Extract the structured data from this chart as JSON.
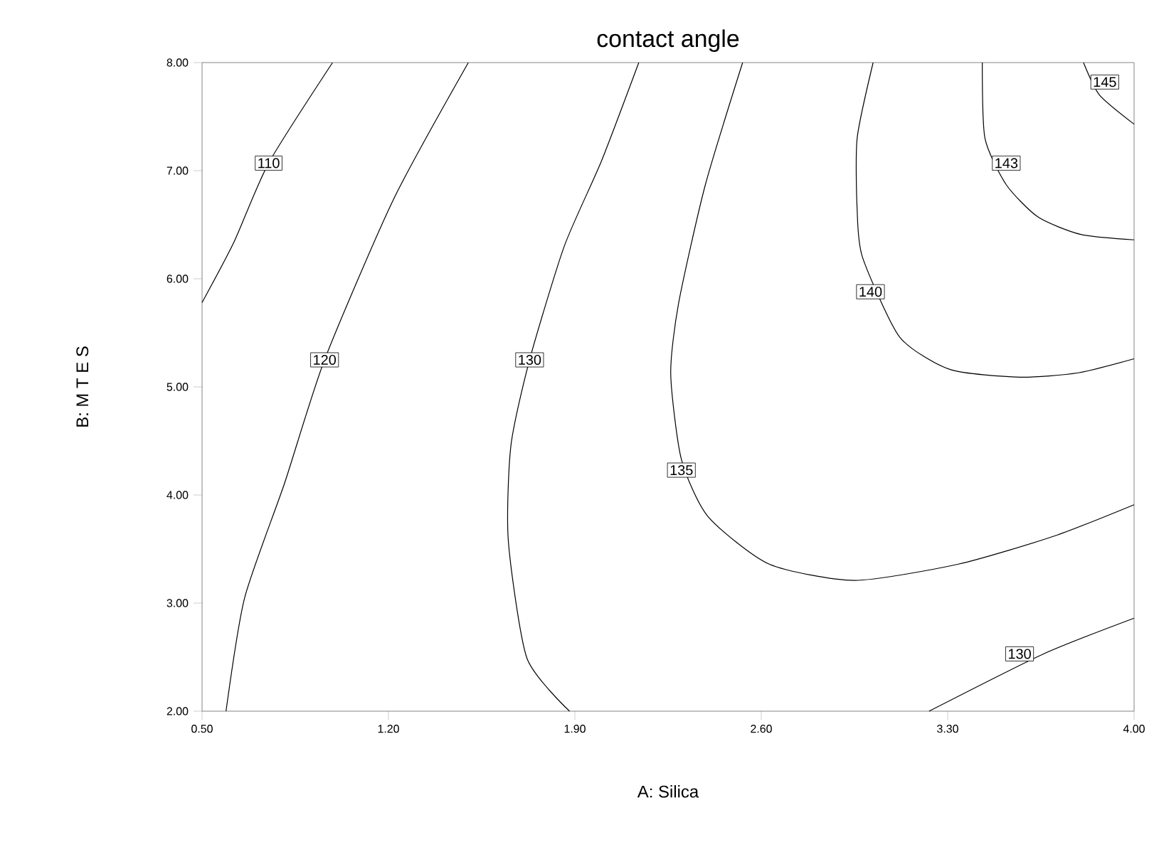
{
  "chart_data": {
    "type": "line",
    "title": "contact angle",
    "xlabel": "A: Silica",
    "ylabel": "B: M T E S",
    "xlim": [
      0.5,
      4.0
    ],
    "ylim": [
      2.0,
      8.0
    ],
    "xticks": [
      {
        "value": 0.5,
        "label": "0.50"
      },
      {
        "value": 1.2,
        "label": "1.20"
      },
      {
        "value": 1.9,
        "label": "1.90"
      },
      {
        "value": 2.6,
        "label": "2.60"
      },
      {
        "value": 3.3,
        "label": "3.30"
      },
      {
        "value": 4.0,
        "label": "4.00"
      }
    ],
    "yticks": [
      {
        "value": 2,
        "label": "2.00"
      },
      {
        "value": 3,
        "label": "3.00"
      },
      {
        "value": 4,
        "label": "4.00"
      },
      {
        "value": 5,
        "label": "5.00"
      },
      {
        "value": 6,
        "label": "6.00"
      },
      {
        "value": 7,
        "label": "7.00"
      },
      {
        "value": 8,
        "label": "8.00"
      }
    ],
    "grid": false,
    "marker": "none",
    "line_style": "solid",
    "series": [
      {
        "color": "#000000",
        "x": [
          0.5,
          0.62,
          0.75,
          0.99
        ],
        "values": [
          5.78,
          6.34,
          7.07,
          8.0
        ]
      },
      {
        "color": "#000000",
        "x": [
          0.59,
          0.66,
          0.81,
          0.96,
          1.22,
          1.5
        ],
        "values": [
          2.0,
          3.05,
          4.11,
          5.25,
          6.74,
          8.0
        ]
      },
      {
        "color": "#000000",
        "x": [
          1.88,
          1.72,
          1.65,
          1.66,
          1.73,
          1.86,
          2.0,
          2.14
        ],
        "values": [
          2.0,
          2.49,
          3.58,
          4.46,
          5.25,
          6.3,
          7.09,
          8.0
        ]
      },
      {
        "color": "#000000",
        "x": [
          2.53,
          2.39,
          2.29,
          2.26,
          2.3,
          2.4,
          2.63,
          2.95,
          3.34,
          3.7,
          4.0
        ],
        "values": [
          8.0,
          6.87,
          5.78,
          5.12,
          4.33,
          3.8,
          3.36,
          3.21,
          3.36,
          3.62,
          3.91
        ]
      },
      {
        "color": "#000000",
        "x": [
          3.02,
          2.96,
          2.96,
          2.98,
          3.12,
          3.31,
          3.57,
          3.79,
          4.0
        ],
        "values": [
          8.0,
          7.3,
          6.64,
          6.2,
          5.46,
          5.16,
          5.09,
          5.13,
          5.26
        ]
      },
      {
        "color": "#000000",
        "x": [
          3.43,
          3.44,
          3.52,
          3.64,
          3.8,
          4.0
        ],
        "values": [
          8.0,
          7.3,
          6.87,
          6.57,
          6.41,
          6.36
        ]
      },
      {
        "color": "#000000",
        "x": [
          3.81,
          3.87,
          4.0
        ],
        "values": [
          8.0,
          7.7,
          7.43
        ]
      },
      {
        "color": "#000000",
        "x": [
          3.23,
          3.66,
          4.0
        ],
        "values": [
          2.0,
          2.53,
          2.86
        ]
      }
    ],
    "annotations": [
      {
        "text": "110",
        "x": 0.75,
        "y": 7.07
      },
      {
        "text": "120",
        "x": 0.96,
        "y": 5.25
      },
      {
        "text": "130",
        "x": 1.73,
        "y": 5.25
      },
      {
        "text": "135",
        "x": 2.3,
        "y": 4.23
      },
      {
        "text": "140",
        "x": 3.01,
        "y": 5.88
      },
      {
        "text": "143",
        "x": 3.52,
        "y": 7.07
      },
      {
        "text": "145",
        "x": 3.89,
        "y": 7.82
      },
      {
        "text": "130",
        "x": 3.57,
        "y": 2.53
      }
    ]
  }
}
